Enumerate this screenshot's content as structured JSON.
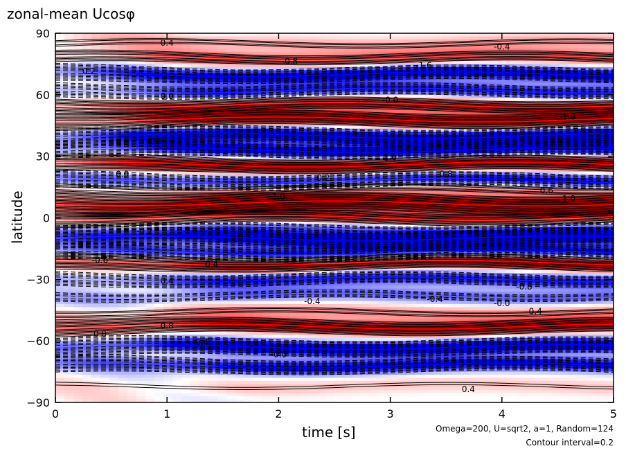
{
  "chart_data": {
    "type": "heatmap",
    "title": "zonal-mean Ucosφ",
    "xlabel": "time [s]",
    "ylabel": "latitude",
    "xlim": [
      0,
      5
    ],
    "ylim": [
      -90,
      90
    ],
    "xticks": [
      "0",
      "1",
      "2",
      "3",
      "4",
      "5"
    ],
    "yticks": [
      "−90",
      "−60",
      "−30",
      "0",
      "30",
      "60",
      "90"
    ],
    "annotation_params": "Omega=200, U=sqrt2, a=1, Random=124",
    "annotation_interval": "Contour interval=0.2",
    "colors": {
      "positive": "#ff0000",
      "negative": "#0000ff",
      "neutral": "#ffffff",
      "contour": "#000000"
    },
    "bands": [
      {
        "lat": 85,
        "amp": 0.5
      },
      {
        "lat": 78,
        "amp": 0.9
      },
      {
        "lat": 70,
        "amp": -1.6
      },
      {
        "lat": 62,
        "amp": -1.2
      },
      {
        "lat": 55,
        "amp": 1.2
      },
      {
        "lat": 48,
        "amp": 1.5
      },
      {
        "lat": 40,
        "amp": -1.8
      },
      {
        "lat": 33,
        "amp": -1.6
      },
      {
        "lat": 26,
        "amp": 1.6
      },
      {
        "lat": 18,
        "amp": -1.4
      },
      {
        "lat": 14,
        "amp": 0.8
      },
      {
        "lat": 7,
        "amp": 2.0
      },
      {
        "lat": 0,
        "amp": 1.2
      },
      {
        "lat": -5,
        "amp": -0.8
      },
      {
        "lat": -10,
        "amp": -1.8
      },
      {
        "lat": -17,
        "amp": -1.4
      },
      {
        "lat": -22,
        "amp": 1.6
      },
      {
        "lat": -30,
        "amp": -1.2
      },
      {
        "lat": -38,
        "amp": -0.8
      },
      {
        "lat": -46,
        "amp": 0.6
      },
      {
        "lat": -53,
        "amp": 1.4
      },
      {
        "lat": -63,
        "amp": -1.8
      },
      {
        "lat": -72,
        "amp": -1.4
      },
      {
        "lat": -82,
        "amp": 0.3
      }
    ],
    "contour_labels": [
      {
        "t": 1.0,
        "lat": 84,
        "text": "0.4"
      },
      {
        "t": 4.0,
        "lat": 82,
        "text": "-0.4"
      },
      {
        "t": 0.3,
        "lat": 70,
        "text": "0.2"
      },
      {
        "t": 2.1,
        "lat": 75,
        "text": "-0.8"
      },
      {
        "t": 3.3,
        "lat": 73,
        "text": "-1.6"
      },
      {
        "t": 1.0,
        "lat": 58,
        "text": "0.0"
      },
      {
        "t": 3.0,
        "lat": 56,
        "text": "-0.0"
      },
      {
        "t": 4.6,
        "lat": 48,
        "text": "1.8"
      },
      {
        "t": 0.9,
        "lat": 36,
        "text": "0.6"
      },
      {
        "t": 3.0,
        "lat": 28,
        "text": "1.0"
      },
      {
        "t": 0.6,
        "lat": 20,
        "text": "0.0"
      },
      {
        "t": 2.4,
        "lat": 18,
        "text": "0.2"
      },
      {
        "t": 3.5,
        "lat": 20,
        "text": "0.8"
      },
      {
        "t": 4.4,
        "lat": 12,
        "text": "0.6"
      },
      {
        "t": 2.0,
        "lat": 9,
        "text": "1.0"
      },
      {
        "t": 4.6,
        "lat": 8,
        "text": "1.0"
      },
      {
        "t": 0.8,
        "lat": -8,
        "text": "-0.2"
      },
      {
        "t": 1.4,
        "lat": -24,
        "text": "0.4"
      },
      {
        "t": 0.4,
        "lat": -22,
        "text": "-0.6"
      },
      {
        "t": 1.0,
        "lat": -32,
        "text": "0.4"
      },
      {
        "t": 4.2,
        "lat": -35,
        "text": "-0.8"
      },
      {
        "t": 3.4,
        "lat": -41,
        "text": "-0.4"
      },
      {
        "t": 2.3,
        "lat": -42,
        "text": "-0.4"
      },
      {
        "t": 4.0,
        "lat": -43,
        "text": "-0.0"
      },
      {
        "t": 4.3,
        "lat": -47,
        "text": "0.4"
      },
      {
        "t": 0.4,
        "lat": -58,
        "text": "0.0"
      },
      {
        "t": 1.0,
        "lat": -54,
        "text": "0.8"
      },
      {
        "t": 1.3,
        "lat": -62,
        "text": "-0.4"
      },
      {
        "t": 2.0,
        "lat": -68,
        "text": "-0.0"
      },
      {
        "t": 3.7,
        "lat": -85,
        "text": "0.4"
      }
    ]
  }
}
